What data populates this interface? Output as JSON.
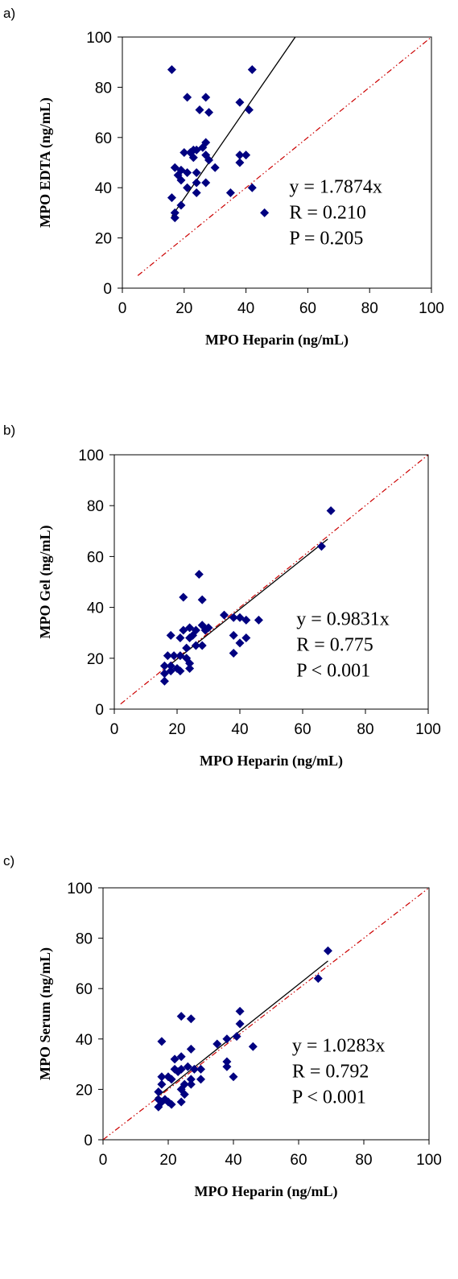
{
  "chart_data": [
    {
      "type": "scatter",
      "panel_label": "a)",
      "xlabel": "MPO Heparin (ng/mL)",
      "ylabel": "MPO EDTA (ng/mL)",
      "xlim": [
        0,
        100
      ],
      "ylim": [
        0,
        100
      ],
      "x_ticks": [
        "0",
        "20",
        "40",
        "60",
        "80",
        "100"
      ],
      "y_ticks": [
        "0",
        "20",
        "40",
        "60",
        "80",
        "100"
      ],
      "annotations": [
        "y = 1.7874x",
        "R = 0.210",
        "P = 0.205"
      ],
      "marker_color": "#000080",
      "regression": {
        "slope": 1.7874,
        "x_range": [
          16,
          56
        ],
        "color": "#000000"
      },
      "identity_line": {
        "x_range": [
          5,
          100
        ],
        "color": "#cc0000",
        "style": "dash-dot-dot"
      },
      "points": [
        [
          16,
          87
        ],
        [
          42,
          87
        ],
        [
          21,
          76
        ],
        [
          27,
          76
        ],
        [
          25,
          71
        ],
        [
          41,
          71
        ],
        [
          28,
          70
        ],
        [
          38,
          74
        ],
        [
          27,
          58
        ],
        [
          26,
          56
        ],
        [
          23,
          55
        ],
        [
          22,
          54
        ],
        [
          20,
          54
        ],
        [
          24,
          55
        ],
        [
          27,
          53
        ],
        [
          38,
          53
        ],
        [
          40,
          53
        ],
        [
          23,
          52
        ],
        [
          38,
          50
        ],
        [
          17,
          48
        ],
        [
          30,
          48
        ],
        [
          19,
          47
        ],
        [
          21,
          46
        ],
        [
          24,
          46
        ],
        [
          28,
          51
        ],
        [
          18,
          45
        ],
        [
          19,
          43
        ],
        [
          24,
          42
        ],
        [
          27,
          42
        ],
        [
          21,
          40
        ],
        [
          42,
          40
        ],
        [
          35,
          38
        ],
        [
          24,
          38
        ],
        [
          16,
          36
        ],
        [
          19,
          33
        ],
        [
          17,
          30
        ],
        [
          17,
          28
        ],
        [
          46,
          30
        ]
      ]
    },
    {
      "type": "scatter",
      "panel_label": "b)",
      "xlabel": "MPO Heparin (ng/mL)",
      "ylabel": "MPO Gel (ng/mL)",
      "xlim": [
        0,
        100
      ],
      "ylim": [
        0,
        100
      ],
      "x_ticks": [
        "0",
        "20",
        "40",
        "60",
        "80",
        "100"
      ],
      "y_ticks": [
        "0",
        "20",
        "40",
        "60",
        "80",
        "100"
      ],
      "annotations": [
        "y = 0.9831x",
        "R = 0.775",
        "P < 0.001"
      ],
      "marker_color": "#000080",
      "regression": {
        "slope": 0.9831,
        "x_range": [
          16,
          68
        ],
        "color": "#000000"
      },
      "identity_line": {
        "x_range": [
          2,
          100
        ],
        "color": "#cc0000",
        "style": "dash-dot-dot"
      },
      "points": [
        [
          69,
          78
        ],
        [
          66,
          64
        ],
        [
          27,
          53
        ],
        [
          22,
          44
        ],
        [
          28,
          43
        ],
        [
          35,
          37
        ],
        [
          38,
          36
        ],
        [
          40,
          36
        ],
        [
          42,
          35
        ],
        [
          46,
          35
        ],
        [
          24,
          32
        ],
        [
          22,
          31
        ],
        [
          28,
          33
        ],
        [
          30,
          32
        ],
        [
          26,
          31
        ],
        [
          25,
          29
        ],
        [
          18,
          29
        ],
        [
          38,
          29
        ],
        [
          42,
          28
        ],
        [
          21,
          28
        ],
        [
          24,
          28
        ],
        [
          29,
          31
        ],
        [
          40,
          26
        ],
        [
          26,
          25
        ],
        [
          28,
          25
        ],
        [
          23,
          24
        ],
        [
          38,
          22
        ],
        [
          19,
          21
        ],
        [
          17,
          21
        ],
        [
          21,
          21
        ],
        [
          23,
          20
        ],
        [
          24,
          18
        ],
        [
          16,
          17
        ],
        [
          18,
          17
        ],
        [
          20,
          16
        ],
        [
          24,
          16
        ],
        [
          21,
          15
        ],
        [
          16,
          14
        ],
        [
          16,
          11
        ],
        [
          18,
          15
        ]
      ]
    },
    {
      "type": "scatter",
      "panel_label": "c)",
      "xlabel": "MPO Heparin (ng/mL)",
      "ylabel": "MPO Serum (ng/mL)",
      "xlim": [
        0,
        100
      ],
      "ylim": [
        0,
        100
      ],
      "x_ticks": [
        "0",
        "20",
        "40",
        "60",
        "80",
        "100"
      ],
      "y_ticks": [
        "0",
        "20",
        "40",
        "60",
        "80",
        "100"
      ],
      "annotations": [
        "y = 1.0283x",
        "R = 0.792",
        "P < 0.001"
      ],
      "marker_color": "#000080",
      "regression": {
        "slope": 1.0283,
        "x_range": [
          16,
          69
        ],
        "color": "#000000"
      },
      "identity_line": {
        "x_range": [
          0,
          100
        ],
        "color": "#cc0000",
        "style": "dash-dot-dot"
      },
      "points": [
        [
          69,
          75
        ],
        [
          66,
          64
        ],
        [
          42,
          51
        ],
        [
          24,
          49
        ],
        [
          27,
          48
        ],
        [
          42,
          46
        ],
        [
          46,
          37
        ],
        [
          41,
          41
        ],
        [
          38,
          40
        ],
        [
          35,
          38
        ],
        [
          18,
          39
        ],
        [
          38,
          31
        ],
        [
          38,
          29
        ],
        [
          40,
          25
        ],
        [
          27,
          36
        ],
        [
          24,
          33
        ],
        [
          22,
          32
        ],
        [
          26,
          29
        ],
        [
          22,
          28
        ],
        [
          28,
          28
        ],
        [
          30,
          28
        ],
        [
          23,
          27
        ],
        [
          24,
          28
        ],
        [
          20,
          25
        ],
        [
          18,
          25
        ],
        [
          21,
          24
        ],
        [
          27,
          24
        ],
        [
          30,
          24
        ],
        [
          18,
          22
        ],
        [
          25,
          22
        ],
        [
          27,
          22
        ],
        [
          24,
          20
        ],
        [
          17,
          19
        ],
        [
          25,
          18
        ],
        [
          17,
          16
        ],
        [
          19,
          16
        ],
        [
          20,
          15
        ],
        [
          18,
          15
        ],
        [
          24,
          15
        ],
        [
          17,
          13
        ],
        [
          21,
          14
        ]
      ]
    }
  ]
}
